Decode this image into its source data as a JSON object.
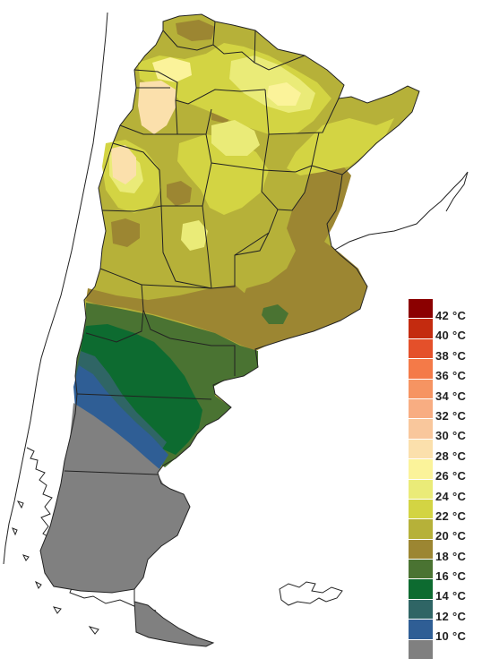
{
  "legend": {
    "palette": [
      "#8b0000",
      "#c42b0f",
      "#e4502a",
      "#f47a48",
      "#f69462",
      "#f8ad82",
      "#f9c79c",
      "#fbe0ac",
      "#fbf39a",
      "#eaeb78",
      "#d3d443",
      "#b6b139",
      "#9c8632",
      "#4a7332",
      "#0d6b30",
      "#2f6565",
      "#2f5e95",
      "#808080"
    ],
    "labels": [
      "42 °C",
      "40 °C",
      "38 °C",
      "36 °C",
      "34 °C",
      "32 °C",
      "30 °C",
      "28 °C",
      "26 °C",
      "24 °C",
      "22 °C",
      "20 °C",
      "18 °C",
      "16 °C",
      "14 °C",
      "12 °C",
      "10 °C"
    ]
  },
  "zones": {
    "c30": "#fbe0ac",
    "c28": "#fbf39a",
    "c26": "#eaeb78",
    "c24": "#d3d443",
    "c22": "#b6b139",
    "c20": "#9c8632",
    "c18": "#4a7332",
    "c16": "#0d6b30",
    "c14": "#2f6565",
    "c12": "#2f5e95",
    "c10": "#808080"
  }
}
